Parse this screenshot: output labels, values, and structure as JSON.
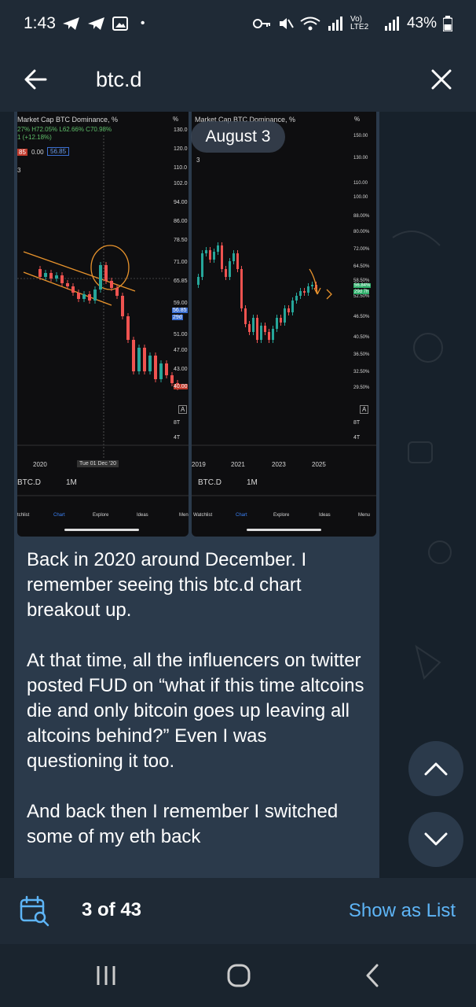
{
  "status_bar": {
    "time": "1:43",
    "dot": "•",
    "signal_text": "Vo) LTE2",
    "battery_pct": "43%"
  },
  "header": {
    "title": "btc.d",
    "back_icon": "arrow-left-icon",
    "close_icon": "close-icon"
  },
  "media": {
    "date_pill": "August 3",
    "left_chart": {
      "title": "Market Cap BTC Dominance, %",
      "ohlc": "27% H72.05% L62.66% C70.98%",
      "change": "1 (+12.18%)",
      "badge1": "85",
      "badge2": "0.00",
      "badge3": "56.85",
      "num3": "3",
      "pct_unit": "%",
      "y_ticks": [
        "130.0",
        "120.0",
        "110.0",
        "102.0",
        "94.00",
        "86.00",
        "78.50",
        "71.00",
        "65.85",
        "59.00",
        "51.00",
        "47.00",
        "43.00",
        "40.00"
      ],
      "price_tag": "56.85",
      "price_tag_sub": "29d",
      "a_label": "A",
      "bt_label": "8T",
      "at_label": "4T",
      "x_ticks": [
        "2020",
        "Tue 01 Dec '20"
      ],
      "symbol": "BTC.D",
      "interval": "1M",
      "tabs": [
        "tchlist",
        "Chart",
        "Explore",
        "Ideas",
        "Men"
      ]
    },
    "right_chart": {
      "title": "Market Cap BTC Dominance, %",
      "num3": "3",
      "pct_unit": "%",
      "y_ticks": [
        "150.00",
        "130.00",
        "110.00",
        "100.00",
        "88.00%",
        "80.00%",
        "72.00%",
        "64.50%",
        "58.50%",
        "52.50%",
        "46.50%",
        "40.50%",
        "36.50%",
        "32.50%",
        "29.50%"
      ],
      "price_tag": "56.84%",
      "price_tag_sub": "29d 7h",
      "a_label": "A",
      "bt_label": "8T",
      "at_label": "4T",
      "x_ticks": [
        "2019",
        "2021",
        "2023",
        "2025"
      ],
      "symbol": "BTC.D",
      "interval": "1M",
      "tabs": [
        "Watchlist",
        "Chart",
        "Explore",
        "Ideas",
        "Menu"
      ]
    }
  },
  "message": {
    "paragraphs": [
      "Back in 2020 around December. I remember seeing this btc.d chart breakout up.",
      "At that time, all the influencers on twitter posted FUD on “what if this time altcoins die and only bitcoin goes up leaving all altcoins behind?” Even I was questioning it too.",
      "And back then I remember I switched some of my eth back"
    ]
  },
  "bottom_bar": {
    "counter": "3 of 43",
    "show_list": "Show as List"
  },
  "nav": {
    "recent_icon": "recent-apps-icon",
    "home_icon": "home-icon",
    "back_icon": "nav-back-icon"
  }
}
